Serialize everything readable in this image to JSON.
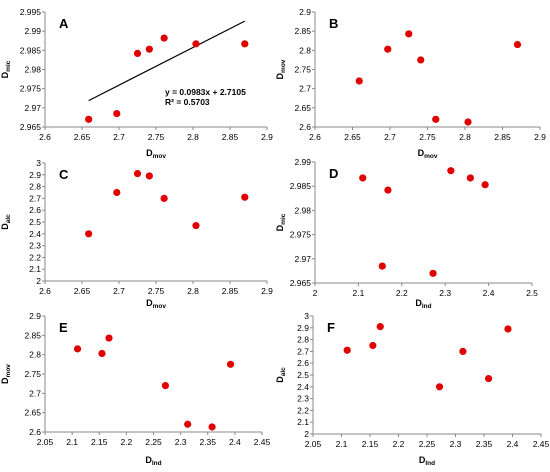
{
  "chart_data": [
    {
      "type": "scatter",
      "panel_label": "A",
      "xlabel": "D",
      "xlabel_sub": "mov",
      "ylabel": "D",
      "ylabel_sub": "mic",
      "xlim": [
        2.6,
        2.9
      ],
      "ylim": [
        2.965,
        2.995
      ],
      "xticks": [
        "2.6",
        "2.65",
        "2.7",
        "2.75",
        "2.8",
        "2.85",
        "2.9"
      ],
      "yticks": [
        "2.965",
        "2.97",
        "2.975",
        "2.98",
        "2.985",
        "2.99",
        "2.995"
      ],
      "grid": false,
      "marker_color": "#e00000",
      "x": [
        2.659,
        2.697,
        2.725,
        2.741,
        2.761,
        2.804,
        2.87
      ],
      "y": [
        2.967,
        2.9685,
        2.9842,
        2.9853,
        2.9882,
        2.9867,
        2.9867
      ],
      "trendline": {
        "slope": 0.0983,
        "intercept": 2.7105,
        "x_range": [
          2.659,
          2.87
        ]
      },
      "annotations": [
        "y = 0.0983x + 2.7105",
        "R² = 0.5703"
      ]
    },
    {
      "type": "scatter",
      "panel_label": "B",
      "xlabel": "D",
      "xlabel_sub": "mov",
      "ylabel": "D",
      "ylabel_sub": "mov",
      "xlim": [
        2.6,
        2.9
      ],
      "ylim": [
        2.6,
        2.9
      ],
      "xticks": [
        "2.6",
        "2.65",
        "2.7",
        "2.75",
        "2.8",
        "2.85",
        "2.9"
      ],
      "yticks": [
        "2.6",
        "2.65",
        "2.7",
        "2.75",
        "2.8",
        "2.85",
        "2.9"
      ],
      "grid": false,
      "marker_color": "#e00000",
      "x": [
        2.659,
        2.697,
        2.725,
        2.741,
        2.761,
        2.804,
        2.87
      ],
      "y": [
        2.72,
        2.803,
        2.843,
        2.775,
        2.62,
        2.613,
        2.815
      ]
    },
    {
      "type": "scatter",
      "panel_label": "C",
      "xlabel": "D",
      "xlabel_sub": "mov",
      "ylabel": "D",
      "ylabel_sub": "alc",
      "xlim": [
        2.6,
        2.9
      ],
      "ylim": [
        2.0,
        3.0
      ],
      "xticks": [
        "2.6",
        "2.65",
        "2.7",
        "2.75",
        "2.8",
        "2.85",
        "2.9"
      ],
      "yticks": [
        "2",
        "2.1",
        "2.2",
        "2.3",
        "2.4",
        "2.5",
        "2.6",
        "2.7",
        "2.8",
        "2.9",
        "3"
      ],
      "grid": false,
      "marker_color": "#e00000",
      "x": [
        2.659,
        2.697,
        2.725,
        2.741,
        2.761,
        2.804,
        2.87
      ],
      "y": [
        2.4,
        2.75,
        2.91,
        2.89,
        2.7,
        2.47,
        2.71
      ]
    },
    {
      "type": "scatter",
      "panel_label": "D",
      "xlabel": "D",
      "xlabel_sub": "lnd",
      "ylabel": "D",
      "ylabel_sub": "mic",
      "xlim": [
        2.0,
        2.5
      ],
      "ylim": [
        2.965,
        2.99
      ],
      "xticks": [
        "2",
        "2.1",
        "2.2",
        "2.3",
        "2.4",
        "2.5"
      ],
      "yticks": [
        "2.965",
        "2.97",
        "2.975",
        "2.98",
        "2.985",
        "2.99"
      ],
      "grid": false,
      "marker_color": "#e00000",
      "x": [
        2.11,
        2.155,
        2.168,
        2.272,
        2.313,
        2.358,
        2.392
      ],
      "y": [
        2.9867,
        2.9685,
        2.9842,
        2.967,
        2.9882,
        2.9867,
        2.9853
      ]
    },
    {
      "type": "scatter",
      "panel_label": "E",
      "xlabel": "D",
      "xlabel_sub": "lnd",
      "ylabel": "D",
      "ylabel_sub": "mov",
      "xlim": [
        2.05,
        2.45
      ],
      "ylim": [
        2.6,
        2.9
      ],
      "xticks": [
        "2.05",
        "2.1",
        "2.15",
        "2.2",
        "2.25",
        "2.3",
        "2.35",
        "2.4",
        "2.45"
      ],
      "yticks": [
        "2.6",
        "2.65",
        "2.7",
        "2.75",
        "2.8",
        "2.85",
        "2.9"
      ],
      "grid": false,
      "marker_color": "#e00000",
      "x": [
        2.11,
        2.155,
        2.168,
        2.272,
        2.313,
        2.358,
        2.392
      ],
      "y": [
        2.815,
        2.803,
        2.843,
        2.72,
        2.62,
        2.613,
        2.775
      ]
    },
    {
      "type": "scatter",
      "panel_label": "F",
      "xlabel": "D",
      "xlabel_sub": "lnd",
      "ylabel": "D",
      "ylabel_sub": "alc",
      "xlim": [
        2.05,
        2.45
      ],
      "ylim": [
        2.0,
        3.0
      ],
      "xticks": [
        "2.05",
        "2.1",
        "2.15",
        "2.2",
        "2.25",
        "2.3",
        "2.35",
        "2.4",
        "2.45"
      ],
      "yticks": [
        "2",
        "2.1",
        "2.2",
        "2.3",
        "2.4",
        "2.5",
        "2.6",
        "2.7",
        "2.8",
        "2.9",
        "3"
      ],
      "grid": false,
      "marker_color": "#e00000",
      "x": [
        2.11,
        2.155,
        2.168,
        2.272,
        2.313,
        2.358,
        2.392
      ],
      "y": [
        2.71,
        2.75,
        2.91,
        2.4,
        2.7,
        2.47,
        2.89
      ]
    }
  ]
}
